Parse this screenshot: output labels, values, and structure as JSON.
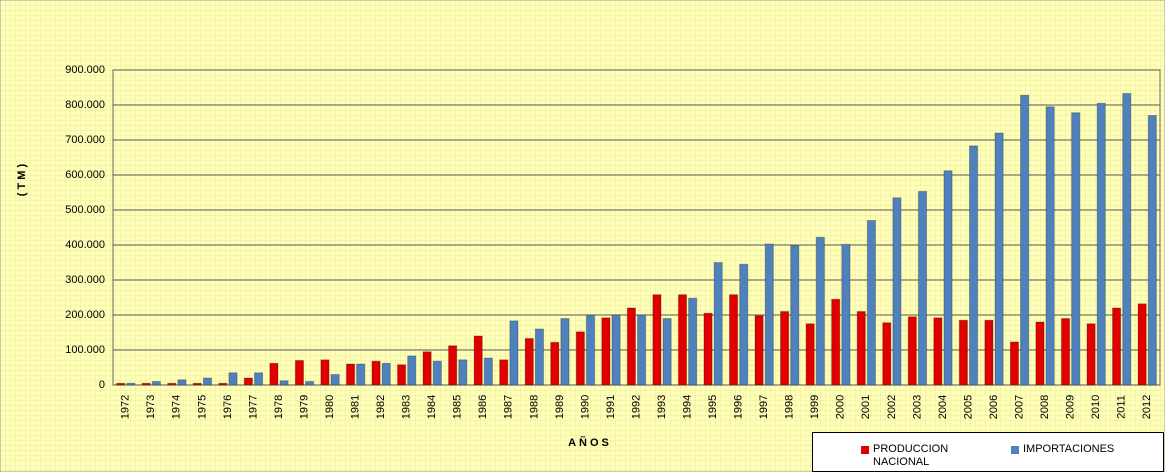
{
  "chart_data": {
    "type": "bar",
    "x_label": "AÑOS",
    "y_label": "( T M )",
    "categories": [
      "1972",
      "1973",
      "1974",
      "1975",
      "1976",
      "1977",
      "1978",
      "1979",
      "1980",
      "1981",
      "1982",
      "1983",
      "1984",
      "1985",
      "1986",
      "1987",
      "1988",
      "1989",
      "1990",
      "1991",
      "1992",
      "1993",
      "1994",
      "1995",
      "1996",
      "1997",
      "1998",
      "1999",
      "2000",
      "2001",
      "2002",
      "2003",
      "2004",
      "2005",
      "2006",
      "2007",
      "2008",
      "2009",
      "2010",
      "2011",
      "2012"
    ],
    "series": [
      {
        "name": "PRODUCCION NACIONAL",
        "color": "#e00000",
        "values": [
          5000,
          5000,
          5000,
          5000,
          5000,
          20000,
          62000,
          70000,
          72000,
          60000,
          68000,
          58000,
          95000,
          112000,
          140000,
          72000,
          133000,
          122000,
          152000,
          192000,
          220000,
          258000,
          258000,
          205000,
          258000,
          198000,
          210000,
          175000,
          245000,
          210000,
          178000,
          195000,
          192000,
          185000,
          185000,
          123000,
          180000,
          190000,
          175000,
          220000,
          232000
        ]
      },
      {
        "name": "IMPORTACIONES",
        "color": "#4f81bd",
        "values": [
          5000,
          10000,
          15000,
          20000,
          35000,
          35000,
          12000,
          10000,
          30000,
          60000,
          62000,
          83000,
          68000,
          72000,
          77000,
          183000,
          160000,
          190000,
          200000,
          200000,
          200000,
          190000,
          248000,
          350000,
          345000,
          403000,
          398000,
          422000,
          402000,
          470000,
          535000,
          553000,
          612000,
          683000,
          720000,
          828000,
          795000,
          778000,
          805000,
          833000,
          770000
        ]
      }
    ],
    "ylim": [
      0,
      900000
    ],
    "yticks": [
      0,
      {
        "value": 100000,
        "label": "100.000"
      },
      {
        "value": 200000,
        "label": "200.000"
      },
      {
        "value": 300000,
        "label": "300.000"
      },
      {
        "value": 400000,
        "label": "400.000"
      },
      {
        "value": 500000,
        "label": "500.000"
      },
      {
        "value": 600000,
        "label": "600.000"
      },
      {
        "value": 700000,
        "label": "700.000"
      },
      {
        "value": 800000,
        "label": "800.000"
      },
      {
        "value": 900000,
        "label": "900.000"
      }
    ],
    "grid": true,
    "legend": "bottom-right"
  }
}
